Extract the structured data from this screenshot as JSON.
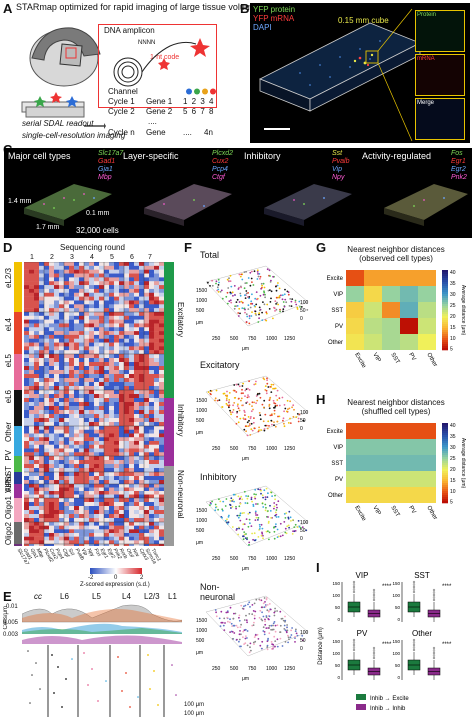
{
  "panelA": {
    "label": "A",
    "title": "STARmap optimized for rapid imaging of large tissue volume",
    "dna_amplicon": "DNA amplicon",
    "nnnn": "NNNN",
    "one_nt_code": "1-nt code",
    "channel_header": "Channel",
    "cycles": [
      {
        "label": "Cycle 1",
        "gene": "Gene 1",
        "codes": "2 3 4"
      },
      {
        "label": "Cycle 2",
        "gene": "Gene 2",
        "codes": "6 7 8"
      },
      {
        "label": "Cycle n",
        "gene": "Gene ....",
        "codes": ""
      }
    ],
    "codes_row1": "1 2 3 4",
    "codes_row2": "5 6 7 8",
    "dots": "....",
    "cycle_n": "Cycle n",
    "gene_n": "Gene",
    "ellipsis": "....",
    "four_n": "4n",
    "serial_sdal": "serial SDAL readout",
    "single_cell": "single-cell-resolution imaging"
  },
  "panelB": {
    "label": "B",
    "legend": [
      "YFP protein",
      "YFP mRNA",
      "DAPI"
    ],
    "legend_colors": [
      "#7ed957",
      "#ff3b3b",
      "#6ea8ff"
    ],
    "cube_label": "0.15 mm cube",
    "insets": [
      "Protein",
      "mRNA",
      "Merge"
    ]
  },
  "panelC": {
    "label": "C",
    "groups": [
      {
        "title": "Major cell types",
        "genes": [
          "Slc17a7",
          "Gad1",
          "Gja1",
          "Mbp"
        ],
        "colors": [
          "#7ed957",
          "#ff3b3b",
          "#6ea8ff",
          "#ff5cd6"
        ]
      },
      {
        "title": "Layer-specific",
        "genes": [
          "Plcxd2",
          "Cux2",
          "Pcp4",
          "Ctgf"
        ],
        "colors": [
          "#7ed957",
          "#ff3b3b",
          "#6ea8ff",
          "#ff5cd6"
        ]
      },
      {
        "title": "Inhibitory",
        "genes": [
          "Sst",
          "Pvalb",
          "Vip",
          "Npy"
        ],
        "colors": [
          "#e8e84a",
          "#ff3b3b",
          "#6ea8ff",
          "#ff5cd6"
        ]
      },
      {
        "title": "Activity-regulated",
        "genes": [
          "Fos",
          "Egr1",
          "Egr2",
          "Pnk2"
        ],
        "colors": [
          "#7ed957",
          "#ff3b3b",
          "#6ea8ff",
          "#ff5cd6"
        ]
      }
    ],
    "dim1": "1.4 mm",
    "dim2": "1.7 mm",
    "dim3": "0.1 mm",
    "cells": "32,000 cells"
  },
  "panelD": {
    "label": "D",
    "seq_round_title": "Sequencing round",
    "rounds": [
      "1",
      "2",
      "3",
      "4",
      "5",
      "6",
      "7"
    ],
    "row_labels": [
      "eL2/3",
      "eL4",
      "eL5",
      "eL6",
      "Other",
      "PV",
      "SST",
      "VIP",
      "Astro",
      "Oligo1",
      "Oligo2"
    ],
    "row_colors": [
      "#f2c200",
      "#e7452b",
      "#e76c9a",
      "#121212",
      "#38a9e0",
      "#4cb848",
      "#283a9a",
      "#9b2f9b",
      "#f4a7c0",
      "#6b6b6b",
      "#6c2f7a"
    ],
    "group_labels": [
      "Excitatory",
      "Inhibitory",
      "Non-neuronal"
    ],
    "group_colors": [
      "#1f9a4a",
      "#9b2f9b",
      "#9a9a9a"
    ],
    "genes_bottom": [
      "Slc17a7",
      "Gad1",
      "Gja1",
      "Mbp",
      "Plcxd2",
      "Cux2",
      "Pcp4",
      "Ctgf",
      "Sst",
      "Pvalb",
      "Vip",
      "Npy",
      "Fos",
      "Egr1",
      "Egr2",
      "Pnk2",
      "Rorb",
      "Otof",
      "Nov",
      "Cplx3",
      "Scnn1a",
      "Tnnc1"
    ],
    "colorbar_ticks": [
      "-2",
      "0",
      "2"
    ],
    "colorbar_label": "Z-scored expression (s.d.)"
  },
  "panelE": {
    "label": "E",
    "layers": [
      "cc",
      "L6",
      "L5",
      "L4",
      "L2/3",
      "L1"
    ],
    "ylabel": "Cells/μm",
    "yticks": [
      "0.01",
      "0.005",
      "0.003"
    ],
    "scale_100_a": "100 μm",
    "scale_100_b": "100 μm"
  },
  "panelF": {
    "label": "F",
    "titles": [
      "Total",
      "Excitatory",
      "Inhibitory",
      "Non-\nneuronal"
    ],
    "axis_unit": "μm",
    "ticks_y": [
      "1500",
      "1000",
      "500"
    ],
    "ticks_x": [
      "250",
      "500",
      "750",
      "1000",
      "1250"
    ],
    "ticks_z": [
      "0",
      "50",
      "100"
    ]
  },
  "panelG": {
    "label": "G",
    "title": "Nearest neighbor distances\n(observed cell types)",
    "rows": [
      "Excite",
      "VIP",
      "SST",
      "PV",
      "Other"
    ],
    "cols": [
      "Excite",
      "VIP",
      "SST",
      "PV",
      "Other"
    ],
    "matrix": [
      [
        10,
        14,
        14,
        14,
        14
      ],
      [
        25,
        18,
        25,
        27,
        25
      ],
      [
        17,
        22,
        13,
        28,
        23
      ],
      [
        18,
        23,
        24,
        6,
        22
      ],
      [
        19,
        22,
        24,
        23,
        20
      ]
    ],
    "cbar_ticks": [
      "40",
      "35",
      "30",
      "25",
      "20",
      "15",
      "10",
      "5"
    ],
    "cbar_label": "Average distance (μm)"
  },
  "panelH": {
    "label": "H",
    "title": "Nearest neighbor distances\n(shuffled cell types)",
    "rows": [
      "Excite",
      "VIP",
      "SST",
      "PV",
      "Other"
    ],
    "cols": [
      "Excite",
      "VIP",
      "SST",
      "PV",
      "Other"
    ],
    "matrix": [
      [
        10,
        10,
        10,
        10,
        10
      ],
      [
        26,
        26,
        26,
        26,
        26
      ],
      [
        27,
        27,
        27,
        27,
        27
      ],
      [
        22,
        22,
        22,
        22,
        22
      ],
      [
        18,
        18,
        18,
        18,
        18
      ]
    ],
    "cbar_ticks": [
      "40",
      "35",
      "30",
      "25",
      "20",
      "15",
      "10",
      "5"
    ],
    "cbar_label": "Average distance (μm)"
  },
  "panelI": {
    "label": "I",
    "groups": [
      "VIP",
      "SST",
      "PV",
      "Other"
    ],
    "sig": "****",
    "ylabel": "Distance (μm)",
    "yticks": [
      "150",
      "100",
      "50",
      "0"
    ],
    "legend": [
      "Inhib → Excite",
      "Inhib → Inhib"
    ],
    "legend_colors": [
      "#1b7a3e",
      "#8a2a8a"
    ]
  }
}
